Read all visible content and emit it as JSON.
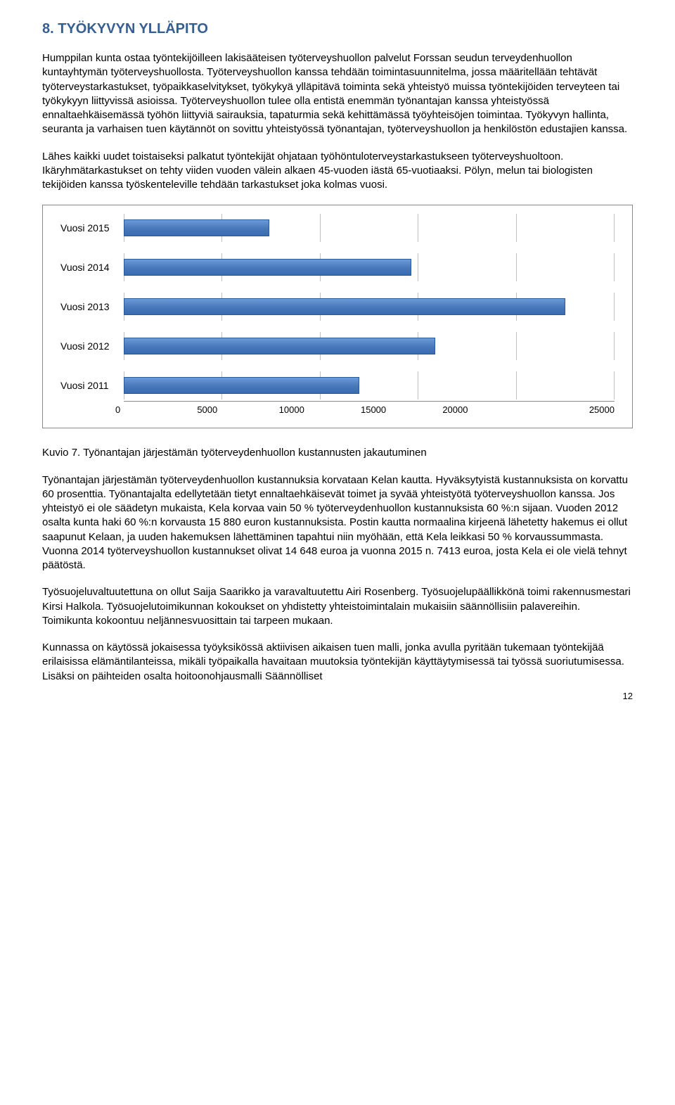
{
  "heading": "8. TYÖKYVYN YLLÄPITO",
  "para1": "Humppilan kunta ostaa työntekijöilleen lakisääteisen työterveyshuollon palvelut Forssan seudun terveydenhuollon kuntayhtymän työterveyshuollosta. Työterveyshuollon kanssa tehdään toimintasuunnitelma, jossa määritellään tehtävät työterveystarkastukset, työpaikkaselvitykset, työkykyä ylläpitävä toiminta sekä yhteistyö muissa työntekijöiden terveyteen tai työkykyyn liittyvissä asioissa. Työterveyshuollon tulee olla entistä enemmän työnantajan kanssa yhteistyössä ennaltaehkäisemässä työhön liittyviä sairauksia, tapaturmia sekä kehittämässä työyhteisöjen toimintaa. Työkyvyn hallinta, seuranta ja varhaisen tuen käytännöt on sovittu yhteistyössä työnantajan, työterveyshuollon ja henkilöstön edustajien kanssa.",
  "para2": "Lähes kaikki uudet toistaiseksi palkatut työntekijät ohjataan työhöntuloterveystarkastukseen työterveyshuoltoon. Ikäryhmätarkastukset on tehty viiden vuoden välein alkaen 45-vuoden iästä 65-vuotiaaksi. Pölyn, melun tai biologisten tekijöiden kanssa työskenteleville tehdään tarkastukset joka kolmas vuosi.",
  "chart": {
    "type": "bar",
    "orientation": "horizontal",
    "categories": [
      "Vuosi 2015",
      "Vuosi 2014",
      "Vuosi 2013",
      "Vuosi 2012",
      "Vuosi 2011"
    ],
    "values": [
      7413,
      14648,
      22500,
      15880,
      12000
    ],
    "xmin": 0,
    "xmax": 25000,
    "xtick_step": 5000,
    "xticks": [
      "0",
      "5000",
      "10000",
      "15000",
      "20000",
      "25000"
    ],
    "bar_color": "#4a7abc",
    "bar_border": "#2a5a9c",
    "grid_color": "#bfbfbf",
    "background_color": "#ffffff",
    "border_color": "#888888",
    "label_fontsize": 14,
    "axis_fontsize": 13
  },
  "caption": "Kuvio 7. Työnantajan järjestämän työterveydenhuollon kustannusten jakautuminen",
  "para3": "Työnantajan järjestämän työterveydenhuollon kustannuksia korvataan Kelan kautta. Hyväksytyistä kustannuksista on korvattu 60 prosenttia. Työnantajalta edellytetään tietyt ennaltaehkäisevät toimet ja syvää yhteistyötä työterveyshuollon kanssa. Jos yhteistyö ei ole säädetyn mukaista, Kela korvaa vain 50 % työterveydenhuollon kustannuksista 60 %:n sijaan. Vuoden 2012 osalta kunta haki 60 %:n korvausta 15 880 euron kustannuksista. Postin kautta normaalina kirjeenä lähetetty hakemus ei ollut saapunut Kelaan, ja uuden hakemuksen lähettäminen tapahtui niin myöhään, että Kela leikkasi 50 % korvaussummasta. Vuonna 2014 työterveyshuollon kustannukset olivat 14 648 euroa ja vuonna 2015 n. 7413 euroa, josta Kela ei ole vielä tehnyt päätöstä.",
  "para4": "Työsuojeluvaltuutettuna on ollut Saija Saarikko ja varavaltuutettu Airi Rosenberg. Työsuojelupäällikkönä toimi rakennusmestari Kirsi Halkola. Työsuojelutoimikunnan kokoukset on yhdistetty yhteistoimintalain mukaisiin säännöllisiin palavereihin. Toimikunta kokoontuu neljännesvuosittain tai tarpeen mukaan.",
  "para5": "Kunnassa on käytössä jokaisessa työyksikössä aktiivisen aikaisen tuen malli, jonka avulla pyritään tukemaan työntekijää erilaisissa elämäntilanteissa, mikäli työpaikalla havaitaan muutoksia työntekijän käyttäytymisessä tai työssä suoriutumisessa. Lisäksi on päihteiden osalta hoitoonohjausmalli Säännölliset",
  "page_number": "12"
}
